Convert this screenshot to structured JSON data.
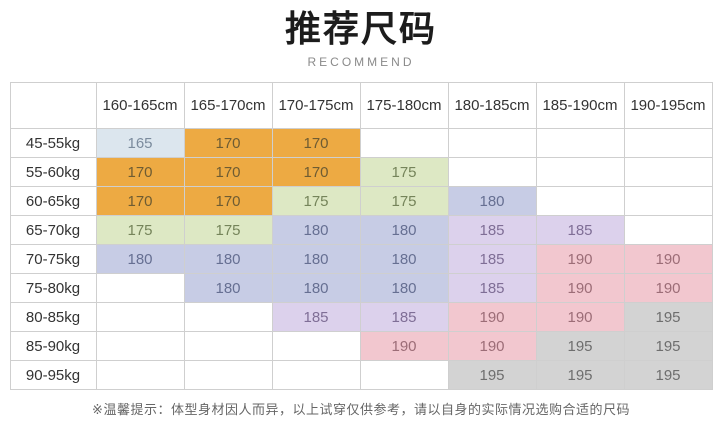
{
  "page": {
    "title": "推荐尺码",
    "subtitle": "RECOMMEND",
    "footer_note": "※温馨提示：体型身材因人而异，以上试穿仅供参考，请以自身的实际情况选购合适的尺码"
  },
  "chart_data": {
    "type": "table",
    "title": "推荐尺码 (Recommended sizes: height columns × weight rows, cell = suggested size)",
    "col_headers": [
      "160-165cm",
      "165-170cm",
      "170-175cm",
      "175-180cm",
      "180-185cm",
      "185-190cm",
      "190-195cm"
    ],
    "row_headers": [
      "45-55kg",
      "55-60kg",
      "60-65kg",
      "65-70kg",
      "70-75kg",
      "75-80kg",
      "80-85kg",
      "85-90kg",
      "90-95kg"
    ],
    "cells": [
      [
        "165",
        "170",
        "170",
        null,
        null,
        null,
        null
      ],
      [
        "170",
        "170",
        "170",
        "175",
        null,
        null,
        null
      ],
      [
        "170",
        "170",
        "175",
        "175",
        "180",
        null,
        null
      ],
      [
        "175",
        "175",
        "180",
        "180",
        "185",
        "185",
        null
      ],
      [
        "180",
        "180",
        "180",
        "180",
        "185",
        "190",
        "190"
      ],
      [
        null,
        "180",
        "180",
        "180",
        "185",
        "190",
        "190"
      ],
      [
        null,
        null,
        "185",
        "185",
        "190",
        "190",
        "195"
      ],
      [
        null,
        null,
        null,
        "190",
        "190",
        "195",
        "195"
      ],
      [
        null,
        null,
        null,
        null,
        "195",
        "195",
        "195"
      ]
    ],
    "value_colors": {
      "165": {
        "bg": "#dce6ee",
        "text": "#7b8b9d"
      },
      "170": {
        "bg": "#edaa43",
        "text": "#6e5c33"
      },
      "175": {
        "bg": "#dde8c4",
        "text": "#75845a"
      },
      "180": {
        "bg": "#c7cce5",
        "text": "#666f92"
      },
      "185": {
        "bg": "#dcd1ec",
        "text": "#7f6e96"
      },
      "190": {
        "bg": "#f2c7cf",
        "text": "#9c6d77"
      },
      "195": {
        "bg": "#d3d3d3",
        "text": "#6e6e6e"
      }
    },
    "layout_hints": {
      "border_color": "#cfcfcf",
      "empty_cell_bg": "#ffffff",
      "header_text_color": "#333333"
    }
  }
}
